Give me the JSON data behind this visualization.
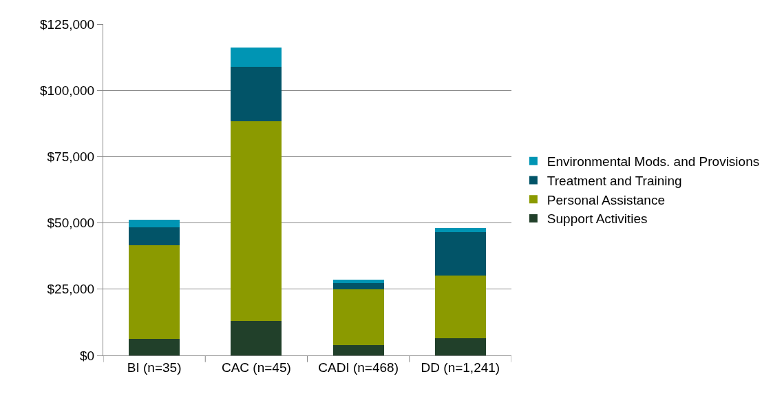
{
  "chart_data": {
    "type": "bar",
    "stacked": true,
    "categories": [
      "BI (n=35)",
      "CAC (n=45)",
      "CADI (n=468)",
      "DD (n=1,241)"
    ],
    "series": [
      {
        "name": "Support Activities",
        "color": "#21402a",
        "values": [
          6200,
          13100,
          4000,
          6600
        ]
      },
      {
        "name": "Personal Assistance",
        "color": "#8b9a00",
        "values": [
          35500,
          75200,
          21000,
          23500
        ]
      },
      {
        "name": "Treatment and Training",
        "color": "#025468",
        "values": [
          6700,
          20500,
          2400,
          16300
        ]
      },
      {
        "name": "Environmental Mods. and Provisions",
        "color": "#0095b4",
        "values": [
          2800,
          7300,
          1100,
          1600
        ]
      }
    ],
    "ylim": [
      0,
      125000
    ],
    "yticks": [
      {
        "value": 0,
        "label": "$0"
      },
      {
        "value": 25000,
        "label": "$25,000"
      },
      {
        "value": 50000,
        "label": "$50,000"
      },
      {
        "value": 75000,
        "label": "$75,000"
      },
      {
        "value": 100000,
        "label": "$100,000"
      },
      {
        "value": 125000,
        "label": "$125,000"
      }
    ],
    "grid": "y",
    "legend": "right"
  }
}
